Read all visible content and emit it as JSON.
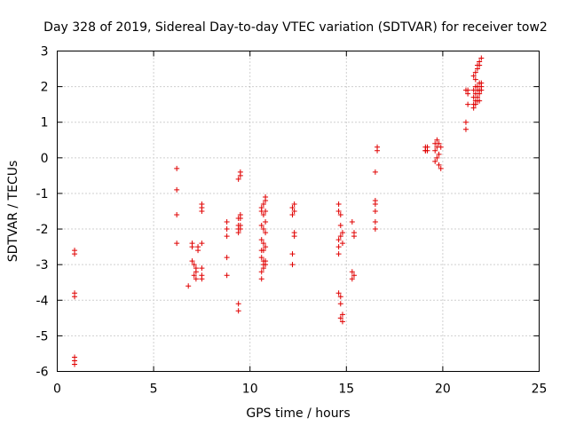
{
  "chart_data": {
    "type": "scatter",
    "title": "Day 328 of 2019, Sidereal Day-to-day VTEC variation (SDTVAR) for receiver tow2",
    "xlabel": "GPS time / hours",
    "ylabel": "SDTVAR / TECUs",
    "xlim": [
      0,
      25
    ],
    "ylim": [
      -6,
      3
    ],
    "xticks": [
      0,
      5,
      10,
      15,
      20,
      25
    ],
    "yticks": [
      -6,
      -5,
      -4,
      -3,
      -2,
      -1,
      0,
      1,
      2,
      3
    ],
    "grid": true,
    "marker": "plus",
    "color": "#e00000",
    "series": [
      {
        "name": "SDTVAR",
        "x": [
          0.9,
          0.9,
          0.9,
          0.9,
          0.9,
          0.9,
          0.9,
          6.2,
          6.2,
          6.2,
          6.2,
          6.8,
          7.0,
          7.0,
          7.0,
          7.1,
          7.1,
          7.2,
          7.2,
          7.2,
          7.3,
          7.3,
          7.5,
          7.5,
          7.5,
          7.5,
          7.5,
          7.5,
          7.5,
          8.8,
          8.8,
          8.8,
          8.8,
          8.8,
          9.4,
          9.4,
          9.4,
          9.4,
          9.4,
          9.4,
          9.4,
          9.5,
          9.5,
          9.5,
          9.5,
          9.5,
          9.5,
          10.6,
          10.6,
          10.6,
          10.6,
          10.6,
          10.6,
          10.6,
          10.6,
          10.7,
          10.7,
          10.7,
          10.7,
          10.7,
          10.7,
          10.7,
          10.7,
          10.8,
          10.8,
          10.8,
          10.8,
          10.8,
          10.8,
          10.8,
          10.8,
          12.2,
          12.2,
          12.2,
          12.2,
          12.3,
          12.3,
          12.3,
          12.3,
          14.6,
          14.6,
          14.6,
          14.6,
          14.6,
          14.6,
          14.7,
          14.7,
          14.7,
          14.7,
          14.7,
          14.7,
          14.8,
          14.8,
          14.8,
          14.8,
          15.3,
          15.3,
          15.3,
          15.4,
          15.4,
          15.4,
          16.5,
          16.5,
          16.5,
          16.5,
          16.5,
          16.5,
          16.6,
          16.6,
          19.1,
          19.1,
          19.1,
          19.2,
          19.2,
          19.6,
          19.6,
          19.6,
          19.7,
          19.7,
          19.7,
          19.8,
          19.8,
          19.8,
          19.9,
          19.9,
          21.2,
          21.2,
          21.2,
          21.3,
          21.3,
          21.3,
          21.6,
          21.6,
          21.6,
          21.6,
          21.6,
          21.7,
          21.7,
          21.7,
          21.7,
          21.7,
          21.7,
          21.8,
          21.8,
          21.8,
          21.8,
          21.8,
          21.8,
          21.9,
          21.9,
          21.9,
          21.9,
          21.9,
          21.9,
          22.0,
          22.0,
          22.0,
          22.0
        ],
        "y": [
          -2.6,
          -2.7,
          -3.8,
          -3.9,
          -5.6,
          -5.7,
          -5.8,
          -0.3,
          -0.9,
          -1.6,
          -2.4,
          -3.6,
          -2.4,
          -2.5,
          -2.9,
          -3.0,
          -3.3,
          -3.1,
          -3.2,
          -3.4,
          -2.5,
          -2.6,
          -1.3,
          -1.4,
          -1.5,
          -2.4,
          -3.1,
          -3.3,
          -3.4,
          -1.8,
          -2.0,
          -2.2,
          -2.8,
          -3.3,
          -0.6,
          -1.7,
          -1.9,
          -2.0,
          -2.1,
          -4.1,
          -4.3,
          -0.4,
          -0.5,
          -1.6,
          -1.7,
          -1.9,
          -2.0,
          -1.4,
          -1.5,
          -1.9,
          -2.3,
          -2.6,
          -2.8,
          -3.2,
          -3.4,
          -1.3,
          -1.6,
          -2.0,
          -2.4,
          -2.6,
          -2.9,
          -3.0,
          -3.1,
          -1.1,
          -1.2,
          -1.5,
          -1.8,
          -2.1,
          -2.5,
          -2.9,
          -3.0,
          -1.4,
          -1.6,
          -2.7,
          -3.0,
          -1.3,
          -1.5,
          -2.1,
          -2.2,
          -1.3,
          -1.5,
          -2.3,
          -2.5,
          -2.7,
          -3.8,
          -1.6,
          -1.9,
          -2.2,
          -3.9,
          -4.1,
          -4.5,
          -2.1,
          -2.4,
          -4.4,
          -4.6,
          -3.2,
          -3.4,
          -1.8,
          -2.1,
          -2.2,
          -3.3,
          -0.4,
          -1.2,
          -1.5,
          -1.8,
          -2.0,
          -1.3,
          0.2,
          0.3,
          0.2,
          0.3,
          0.2,
          0.3,
          0.2,
          0.4,
          0.2,
          -0.1,
          0.5,
          0.3,
          0.0,
          0.4,
          0.1,
          -0.2,
          0.3,
          -0.3,
          0.8,
          1.0,
          1.9,
          1.5,
          1.9,
          1.8,
          1.4,
          1.5,
          1.7,
          1.9,
          2.3,
          1.5,
          1.6,
          1.8,
          2.0,
          2.2,
          2.4,
          1.6,
          1.7,
          1.9,
          2.0,
          2.5,
          2.6,
          1.6,
          1.8,
          1.9,
          2.1,
          2.6,
          2.7,
          1.9,
          2.0,
          2.1,
          2.8
        ]
      }
    ]
  }
}
